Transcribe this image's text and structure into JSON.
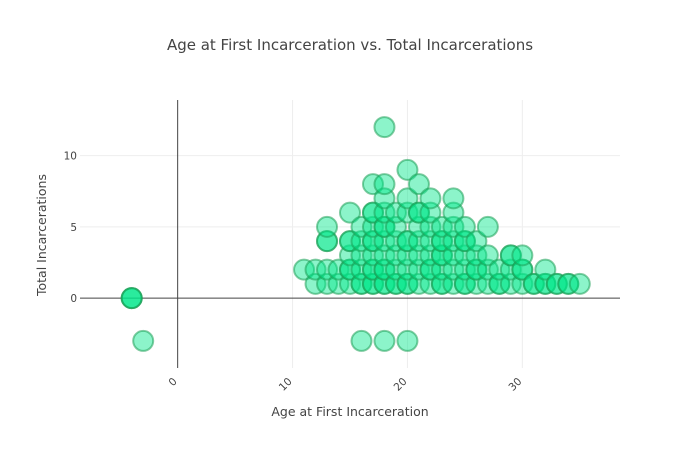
{
  "chart_data": {
    "type": "scatter",
    "title": "Age at First Incarceration vs. Total Incarcerations",
    "xlabel": "Age at First Incarceration",
    "ylabel": "Total Incarcerations",
    "xlim": [
      -8.5,
      38.5
    ],
    "ylim": [
      -4.9,
      13.9
    ],
    "x_ticks": [
      0,
      10,
      20,
      30
    ],
    "y_ticks": [
      0,
      5,
      10
    ],
    "grid": true,
    "zero_lines": true,
    "marker": {
      "fill": "#00e68a",
      "stroke": "#1b9e55",
      "opacity": 0.45,
      "style": "bubble"
    },
    "points": [
      [
        -4,
        0
      ],
      [
        -4,
        0
      ],
      [
        -4,
        0
      ],
      [
        -3,
        -3
      ],
      [
        16,
        -3
      ],
      [
        18,
        -3
      ],
      [
        20,
        -3
      ],
      [
        11,
        2
      ],
      [
        12,
        1
      ],
      [
        12,
        2
      ],
      [
        13,
        1
      ],
      [
        13,
        2
      ],
      [
        13,
        4
      ],
      [
        13,
        4
      ],
      [
        13,
        5
      ],
      [
        14,
        1
      ],
      [
        14,
        2
      ],
      [
        15,
        1
      ],
      [
        15,
        2
      ],
      [
        15,
        2
      ],
      [
        15,
        3
      ],
      [
        15,
        4
      ],
      [
        15,
        4
      ],
      [
        15,
        6
      ],
      [
        16,
        1
      ],
      [
        16,
        1
      ],
      [
        16,
        2
      ],
      [
        16,
        3
      ],
      [
        16,
        4
      ],
      [
        16,
        5
      ],
      [
        17,
        1
      ],
      [
        17,
        1
      ],
      [
        17,
        2
      ],
      [
        17,
        2
      ],
      [
        17,
        3
      ],
      [
        17,
        4
      ],
      [
        17,
        4
      ],
      [
        17,
        5
      ],
      [
        17,
        6
      ],
      [
        17,
        6
      ],
      [
        17,
        8
      ],
      [
        18,
        1
      ],
      [
        18,
        1
      ],
      [
        18,
        2
      ],
      [
        18,
        2
      ],
      [
        18,
        3
      ],
      [
        18,
        4
      ],
      [
        18,
        5
      ],
      [
        18,
        5
      ],
      [
        18,
        6
      ],
      [
        18,
        7
      ],
      [
        18,
        8
      ],
      [
        18,
        12
      ],
      [
        19,
        1
      ],
      [
        19,
        1
      ],
      [
        19,
        2
      ],
      [
        19,
        3
      ],
      [
        19,
        4
      ],
      [
        19,
        5
      ],
      [
        19,
        6
      ],
      [
        20,
        1
      ],
      [
        20,
        1
      ],
      [
        20,
        2
      ],
      [
        20,
        3
      ],
      [
        20,
        4
      ],
      [
        20,
        4
      ],
      [
        20,
        6
      ],
      [
        20,
        7
      ],
      [
        20,
        9
      ],
      [
        21,
        1
      ],
      [
        21,
        2
      ],
      [
        21,
        3
      ],
      [
        21,
        4
      ],
      [
        21,
        5
      ],
      [
        21,
        6
      ],
      [
        21,
        6
      ],
      [
        21,
        8
      ],
      [
        22,
        1
      ],
      [
        22,
        2
      ],
      [
        22,
        2
      ],
      [
        22,
        3
      ],
      [
        22,
        4
      ],
      [
        22,
        5
      ],
      [
        22,
        6
      ],
      [
        22,
        7
      ],
      [
        23,
        1
      ],
      [
        23,
        1
      ],
      [
        23,
        2
      ],
      [
        23,
        3
      ],
      [
        23,
        3
      ],
      [
        23,
        4
      ],
      [
        23,
        4
      ],
      [
        23,
        5
      ],
      [
        24,
        1
      ],
      [
        24,
        2
      ],
      [
        24,
        3
      ],
      [
        24,
        4
      ],
      [
        24,
        5
      ],
      [
        24,
        6
      ],
      [
        24,
        7
      ],
      [
        25,
        1
      ],
      [
        25,
        1
      ],
      [
        25,
        2
      ],
      [
        25,
        3
      ],
      [
        25,
        4
      ],
      [
        25,
        4
      ],
      [
        25,
        5
      ],
      [
        26,
        1
      ],
      [
        26,
        2
      ],
      [
        26,
        2
      ],
      [
        26,
        3
      ],
      [
        26,
        4
      ],
      [
        27,
        1
      ],
      [
        27,
        2
      ],
      [
        27,
        3
      ],
      [
        27,
        5
      ],
      [
        28,
        1
      ],
      [
        28,
        1
      ],
      [
        28,
        2
      ],
      [
        29,
        1
      ],
      [
        29,
        2
      ],
      [
        29,
        3
      ],
      [
        29,
        3
      ],
      [
        30,
        1
      ],
      [
        30,
        2
      ],
      [
        30,
        2
      ],
      [
        30,
        3
      ],
      [
        31,
        1
      ],
      [
        31,
        1
      ],
      [
        32,
        1
      ],
      [
        32,
        1
      ],
      [
        32,
        2
      ],
      [
        33,
        1
      ],
      [
        33,
        1
      ],
      [
        34,
        1
      ],
      [
        34,
        1
      ],
      [
        35,
        1
      ]
    ]
  }
}
